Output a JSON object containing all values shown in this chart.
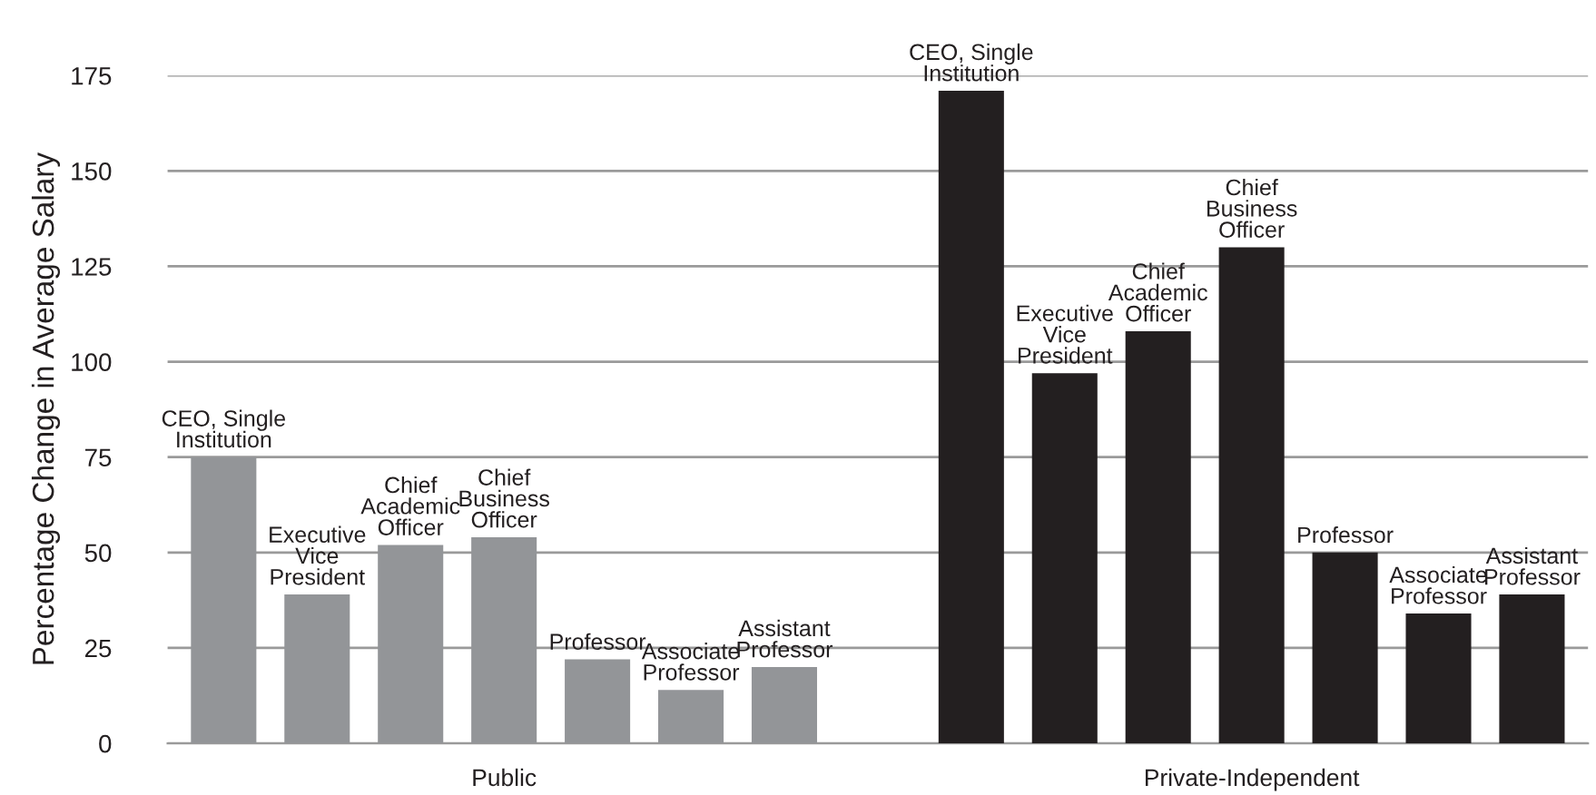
{
  "chart_data": {
    "type": "bar",
    "ylabel": "Percentage Change in Average Salary",
    "categories": [
      "CEO, Single\nInstitution",
      "Executive\nVice\nPresident",
      "Chief\nAcademic\nOfficer",
      "Chief\nBusiness\nOfficer",
      "Professor",
      "Associate\nProfessor",
      "Assistant\nProfessor",
      null,
      "CEO, Single\nInstitution",
      "Executive\nVice\nPresident",
      "Chief\nAcademic\nOfficer",
      "Chief\nBusiness\nOfficer",
      "Professor",
      "Associate\nProfessor",
      "Assistant\nProfessor"
    ],
    "values": [
      75,
      39,
      52,
      54,
      22,
      14,
      20,
      null,
      171,
      97,
      108,
      130,
      50,
      34,
      39
    ],
    "colors": [
      "#939598",
      "#939598",
      "#939598",
      "#939598",
      "#939598",
      "#939598",
      "#939598",
      null,
      "#231f20",
      "#231f20",
      "#231f20",
      "#231f20",
      "#231f20",
      "#231f20",
      "#231f20"
    ],
    "annotations": [
      "Public",
      "Private-Independent"
    ],
    "ylim": [
      0,
      175
    ],
    "yticks": [
      0,
      25,
      50,
      75,
      100,
      125,
      150,
      175
    ],
    "grid": "y"
  }
}
